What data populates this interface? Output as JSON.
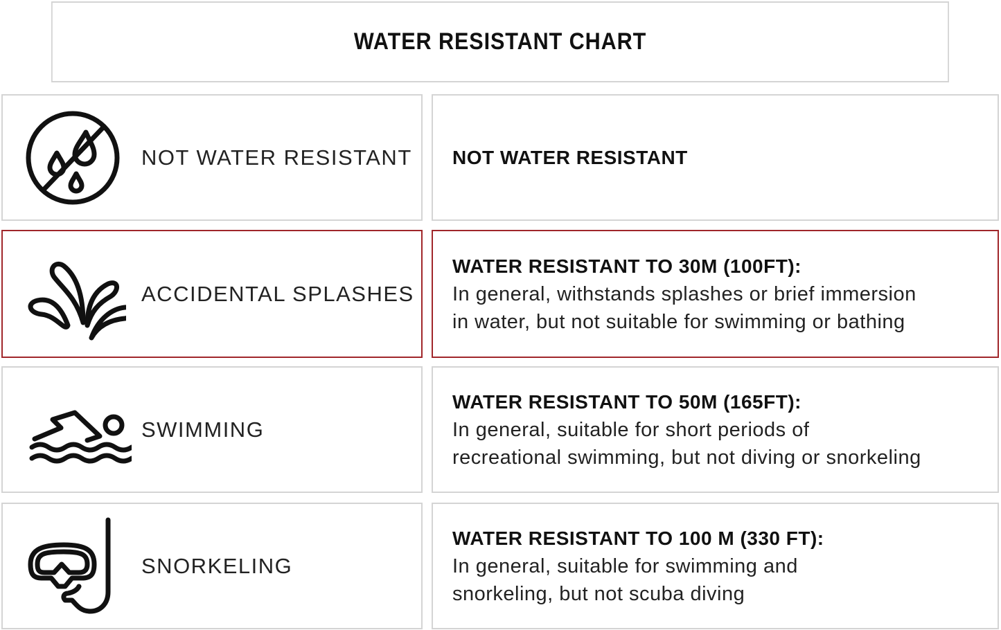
{
  "title": "WATER RESISTANT CHART",
  "accent_color": "#a0262a",
  "rows": [
    {
      "icon": "no-water-drops-icon",
      "label": "NOT WATER RESISTANT",
      "heading": "NOT WATER RESISTANT",
      "lines": []
    },
    {
      "icon": "splash-icon",
      "label": "ACCIDENTAL SPLASHES",
      "heading": "WATER RESISTANT TO 30M (100FT):",
      "lines": [
        "In general, withstands splashes or brief immersion",
        "in water, but not suitable for swimming or bathing"
      ],
      "highlighted": true
    },
    {
      "icon": "swimmer-icon",
      "label": "SWIMMING",
      "heading": "WATER RESISTANT TO 50M (165FT):",
      "lines": [
        "In general, suitable for short periods of",
        "recreational swimming, but not diving or snorkeling"
      ]
    },
    {
      "icon": "snorkel-mask-icon",
      "label": "SNORKELING",
      "heading": "WATER RESISTANT TO 100 M (330 FT):",
      "lines": [
        "In general, suitable for swimming and",
        "snorkeling, but not scuba diving"
      ]
    }
  ]
}
